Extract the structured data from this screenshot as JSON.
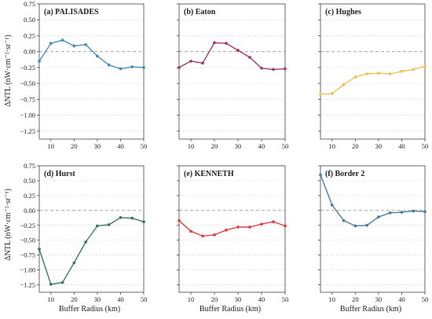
{
  "figure": {
    "ylabel": "ΔNTL (nW·cm⁻²·sr⁻¹)",
    "xlabel": "Buffer Radius (km)"
  },
  "chart_data": [
    {
      "type": "line",
      "title": "(a) PALISADES",
      "color": "#4a90b5",
      "x": [
        5,
        10,
        15,
        20,
        25,
        30,
        35,
        40,
        45,
        50
      ],
      "y": [
        -0.15,
        0.13,
        0.18,
        0.09,
        0.11,
        -0.07,
        -0.21,
        -0.27,
        -0.24,
        -0.25
      ],
      "xlim": [
        5,
        50
      ],
      "ylim": [
        -1.375,
        0.75
      ],
      "xticks": [
        10,
        20,
        30,
        40,
        50
      ],
      "yticks": [
        0.75,
        0.5,
        0.25,
        0.0,
        -0.25,
        -0.5,
        -0.75,
        -1.0,
        -1.25
      ],
      "ytick_labels": [
        "0.75",
        "0.50",
        "0.25",
        "0.00",
        "−0.25",
        "−0.50",
        "−0.75",
        "−1.00",
        "−1.25"
      ],
      "reference_line": 0,
      "grid": "y-dashed"
    },
    {
      "type": "line",
      "title": "(b) Eaton",
      "color": "#a33d6b",
      "x": [
        5,
        10,
        15,
        20,
        25,
        30,
        35,
        40,
        45,
        50
      ],
      "y": [
        -0.25,
        -0.15,
        -0.18,
        0.14,
        0.13,
        0.02,
        -0.09,
        -0.26,
        -0.28,
        -0.27
      ],
      "xlim": [
        5,
        50
      ],
      "ylim": [
        -1.375,
        0.75
      ],
      "xticks": [
        10,
        20,
        30,
        40,
        50
      ],
      "yticks": [
        0.75,
        0.5,
        0.25,
        0.0,
        -0.25,
        -0.5,
        -0.75,
        -1.0,
        -1.25
      ],
      "ytick_labels": [
        "0.75",
        "0.50",
        "0.25",
        "0.00",
        "−0.25",
        "−0.50",
        "−0.75",
        "−1.00",
        "−1.25"
      ],
      "reference_line": 0,
      "grid": "y-dashed"
    },
    {
      "type": "line",
      "title": "(c) Hughes",
      "color": "#f0c05a",
      "x": [
        5,
        10,
        15,
        20,
        25,
        30,
        35,
        40,
        45,
        50
      ],
      "y": [
        -0.67,
        -0.66,
        -0.52,
        -0.4,
        -0.35,
        -0.34,
        -0.35,
        -0.31,
        -0.28,
        -0.23
      ],
      "xlim": [
        5,
        50
      ],
      "ylim": [
        -1.375,
        0.75
      ],
      "xticks": [
        10,
        20,
        30,
        40,
        50
      ],
      "yticks": [
        0.75,
        0.5,
        0.25,
        0.0,
        -0.25,
        -0.5,
        -0.75,
        -1.0,
        -1.25
      ],
      "ytick_labels": [
        "0.75",
        "0.50",
        "0.25",
        "0.00",
        "−0.25",
        "−0.50",
        "−0.75",
        "−1.00",
        "−1.25"
      ],
      "reference_line": 0,
      "grid": "y-dashed"
    },
    {
      "type": "line",
      "title": "(d) Hurst",
      "color": "#3d7a6b",
      "x": [
        5,
        10,
        15,
        20,
        25,
        30,
        35,
        40,
        45,
        50
      ],
      "y": [
        -0.65,
        -1.24,
        -1.21,
        -0.88,
        -0.53,
        -0.26,
        -0.24,
        -0.12,
        -0.13,
        -0.19
      ],
      "xlim": [
        5,
        50
      ],
      "ylim": [
        -1.375,
        0.75
      ],
      "xticks": [
        10,
        20,
        30,
        40,
        50
      ],
      "yticks": [
        0.75,
        0.5,
        0.25,
        0.0,
        -0.25,
        -0.5,
        -0.75,
        -1.0,
        -1.25
      ],
      "ytick_labels": [
        "0.75",
        "0.50",
        "0.25",
        "0.00",
        "−0.25",
        "−0.50",
        "−0.75",
        "−1.00",
        "−1.25"
      ],
      "reference_line": 0,
      "grid": "y-dashed"
    },
    {
      "type": "line",
      "title": "(e) KENNETH",
      "color": "#e0424a",
      "x": [
        5,
        10,
        15,
        20,
        25,
        30,
        35,
        40,
        45,
        50
      ],
      "y": [
        -0.17,
        -0.35,
        -0.43,
        -0.41,
        -0.33,
        -0.28,
        -0.28,
        -0.23,
        -0.19,
        -0.26
      ],
      "xlim": [
        5,
        50
      ],
      "ylim": [
        -1.375,
        0.75
      ],
      "xticks": [
        10,
        20,
        30,
        40,
        50
      ],
      "yticks": [
        0.75,
        0.5,
        0.25,
        0.0,
        -0.25,
        -0.5,
        -0.75,
        -1.0,
        -1.25
      ],
      "ytick_labels": [
        "0.75",
        "0.50",
        "0.25",
        "0.00",
        "−0.25",
        "−0.50",
        "−0.75",
        "−1.00",
        "−1.25"
      ],
      "reference_line": 0,
      "grid": "y-dashed"
    },
    {
      "type": "line",
      "title": "(f) Border 2",
      "color": "#4a7fa3",
      "x": [
        5,
        10,
        15,
        20,
        25,
        30,
        35,
        40,
        45,
        50
      ],
      "y": [
        0.6,
        0.09,
        -0.17,
        -0.26,
        -0.25,
        -0.11,
        -0.04,
        -0.03,
        -0.01,
        -0.02
      ],
      "xlim": [
        5,
        50
      ],
      "ylim": [
        -1.375,
        0.75
      ],
      "xticks": [
        10,
        20,
        30,
        40,
        50
      ],
      "yticks": [
        0.75,
        0.5,
        0.25,
        0.0,
        -0.25,
        -0.5,
        -0.75,
        -1.0,
        -1.25
      ],
      "ytick_labels": [
        "0.75",
        "0.50",
        "0.25",
        "0.00",
        "−0.25",
        "−0.50",
        "−0.75",
        "−1.00",
        "−1.25"
      ],
      "reference_line": 0,
      "grid": "y-dashed"
    }
  ]
}
